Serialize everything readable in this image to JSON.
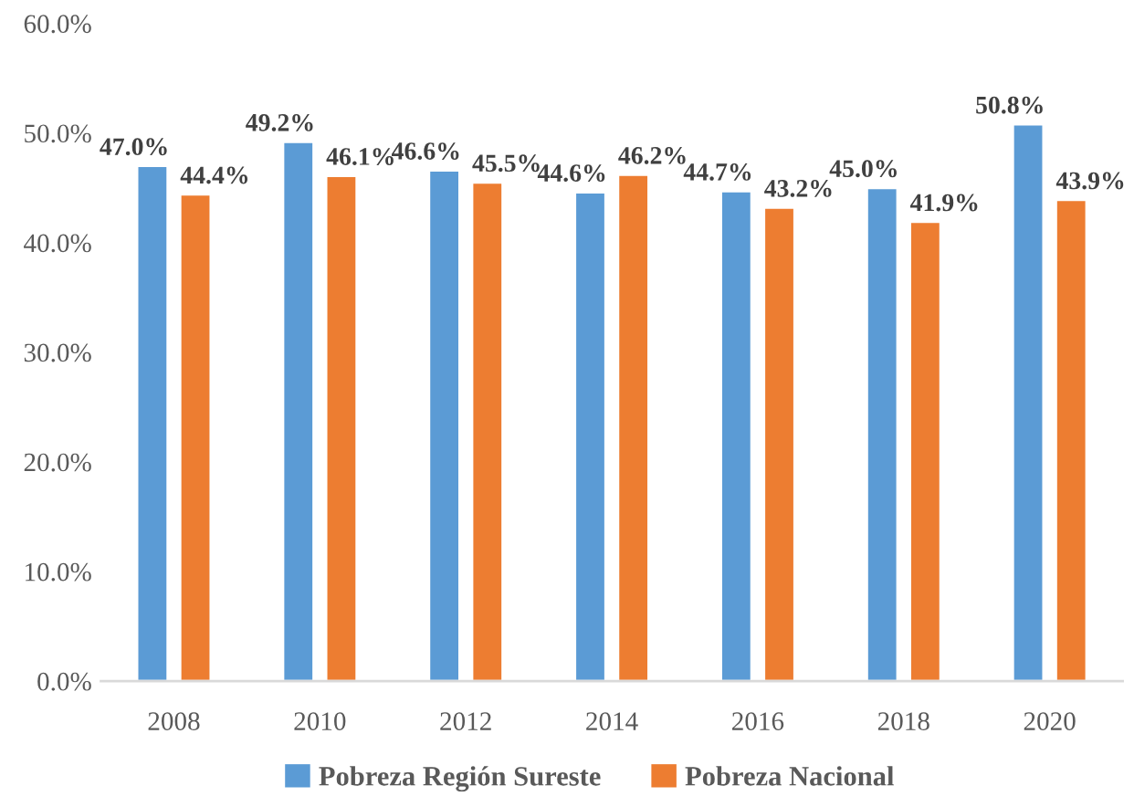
{
  "chart_data": {
    "type": "bar",
    "categories": [
      "2008",
      "2010",
      "2012",
      "2014",
      "2016",
      "2018",
      "2020"
    ],
    "series": [
      {
        "name": "Pobreza Región Sureste",
        "color": "#5b9bd5",
        "values": [
          47.0,
          49.2,
          46.6,
          44.6,
          44.7,
          45.0,
          50.8
        ],
        "value_labels": [
          "47.0%",
          "49.2%",
          "46.6%",
          "44.6%",
          "44.7%",
          "45.0%",
          "50.8%"
        ]
      },
      {
        "name": "Pobreza Nacional",
        "color": "#ed7d31",
        "values": [
          44.4,
          46.1,
          45.5,
          46.2,
          43.2,
          41.9,
          43.9
        ],
        "value_labels": [
          "44.4%",
          "46.1%",
          "45.5%",
          "46.2%",
          "43.2%",
          "41.9%",
          "43.9%"
        ]
      }
    ],
    "ylim": [
      0,
      60
    ],
    "yticks": [
      {
        "value": 0,
        "label": "0.0%"
      },
      {
        "value": 10,
        "label": "10.0%"
      },
      {
        "value": 20,
        "label": "20.0%"
      },
      {
        "value": 30,
        "label": "30.0%"
      },
      {
        "value": 40,
        "label": "40.0%"
      },
      {
        "value": 50,
        "label": "50.0%"
      },
      {
        "value": 60,
        "label": "60.0%"
      }
    ],
    "grid": false,
    "legend": "bottom"
  }
}
